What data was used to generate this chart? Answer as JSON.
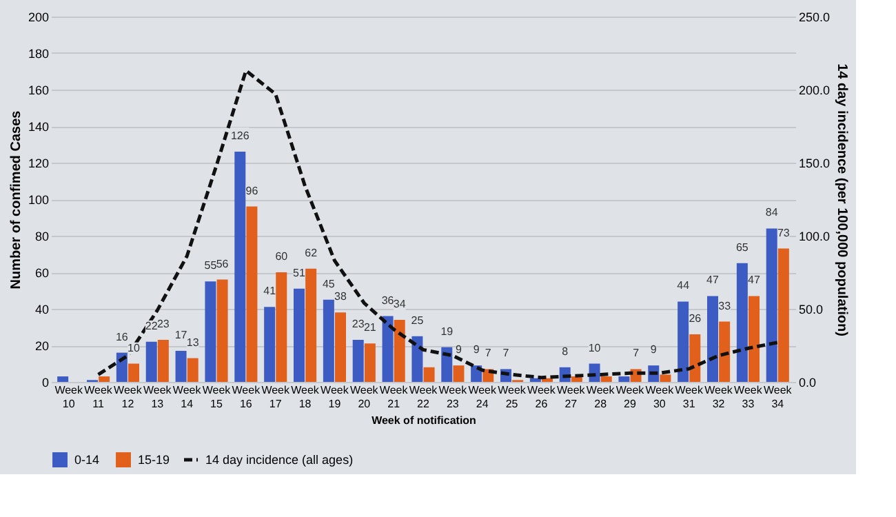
{
  "chart_data": {
    "type": "bar",
    "xlabel": "Week of notification",
    "ylabel": "Number of confimed Cases",
    "y2label": "14 day incidence (per 100,000 population)",
    "categories": [
      "Week 10",
      "Week 11",
      "Week 12",
      "Week 13",
      "Week 14",
      "Week 15",
      "Week 16",
      "Week 17",
      "Week 18",
      "Week 19",
      "Week 20",
      "Week 21",
      "Week 22",
      "Week 23",
      "Week 24",
      "Week 25",
      "Week 26",
      "Week 27",
      "Week 28",
      "Week 29",
      "Week 30",
      "Week 31",
      "Week 32",
      "Week 33",
      "Week 34"
    ],
    "series": [
      {
        "name": "0-14",
        "color": "#3c5cc4",
        "values": [
          3,
          1,
          16,
          22,
          17,
          55,
          126,
          41,
          51,
          45,
          23,
          36,
          25,
          19,
          9,
          7,
          2,
          8,
          10,
          3,
          9,
          44,
          47,
          65,
          84
        ],
        "value_labels": [
          null,
          null,
          "16",
          "22",
          "17",
          "55",
          "126",
          "41",
          "51",
          "45",
          "23",
          "36",
          "25",
          "19",
          "9",
          "7",
          null,
          "8",
          "10",
          null,
          "9",
          "44",
          "47",
          "65",
          "84"
        ]
      },
      {
        "name": "15-19",
        "color": "#e0601c",
        "values": [
          null,
          3,
          10,
          23,
          13,
          56,
          96,
          60,
          62,
          38,
          21,
          34,
          8,
          9,
          7,
          1,
          2,
          3,
          3,
          7,
          4,
          26,
          33,
          47,
          73
        ],
        "value_labels": [
          null,
          null,
          "10",
          "23",
          "13",
          "56",
          "96",
          "60",
          "62",
          "38",
          "21",
          "34",
          null,
          "9",
          "7",
          null,
          null,
          null,
          null,
          "7",
          null,
          "26",
          "33",
          "47",
          "73"
        ]
      },
      {
        "name": "14 day incidence (all ages)",
        "type": "line",
        "axis": "y2",
        "color": "#111111",
        "line_style": "dashed",
        "marker": "none",
        "values": [
          null,
          5,
          18,
          49,
          86,
          148,
          213,
          197,
          134,
          83,
          54,
          36,
          22,
          18,
          8,
          5,
          3,
          4,
          5,
          6,
          6,
          9,
          18,
          23,
          27
        ]
      }
    ],
    "ylim": [
      0,
      200
    ],
    "yticks": [
      0,
      20,
      40,
      60,
      80,
      100,
      120,
      140,
      160,
      180,
      200
    ],
    "y2lim": [
      0,
      250
    ],
    "y2ticks": [
      {
        "value": 0,
        "label": "0.0"
      },
      {
        "value": 50,
        "label": "50.0"
      },
      {
        "value": 100,
        "label": "100.0"
      },
      {
        "value": 150,
        "label": "150.0"
      },
      {
        "value": 200,
        "label": "200.0"
      },
      {
        "value": 250,
        "label": "250.0"
      }
    ],
    "grid": "y",
    "legend": "bottom"
  }
}
